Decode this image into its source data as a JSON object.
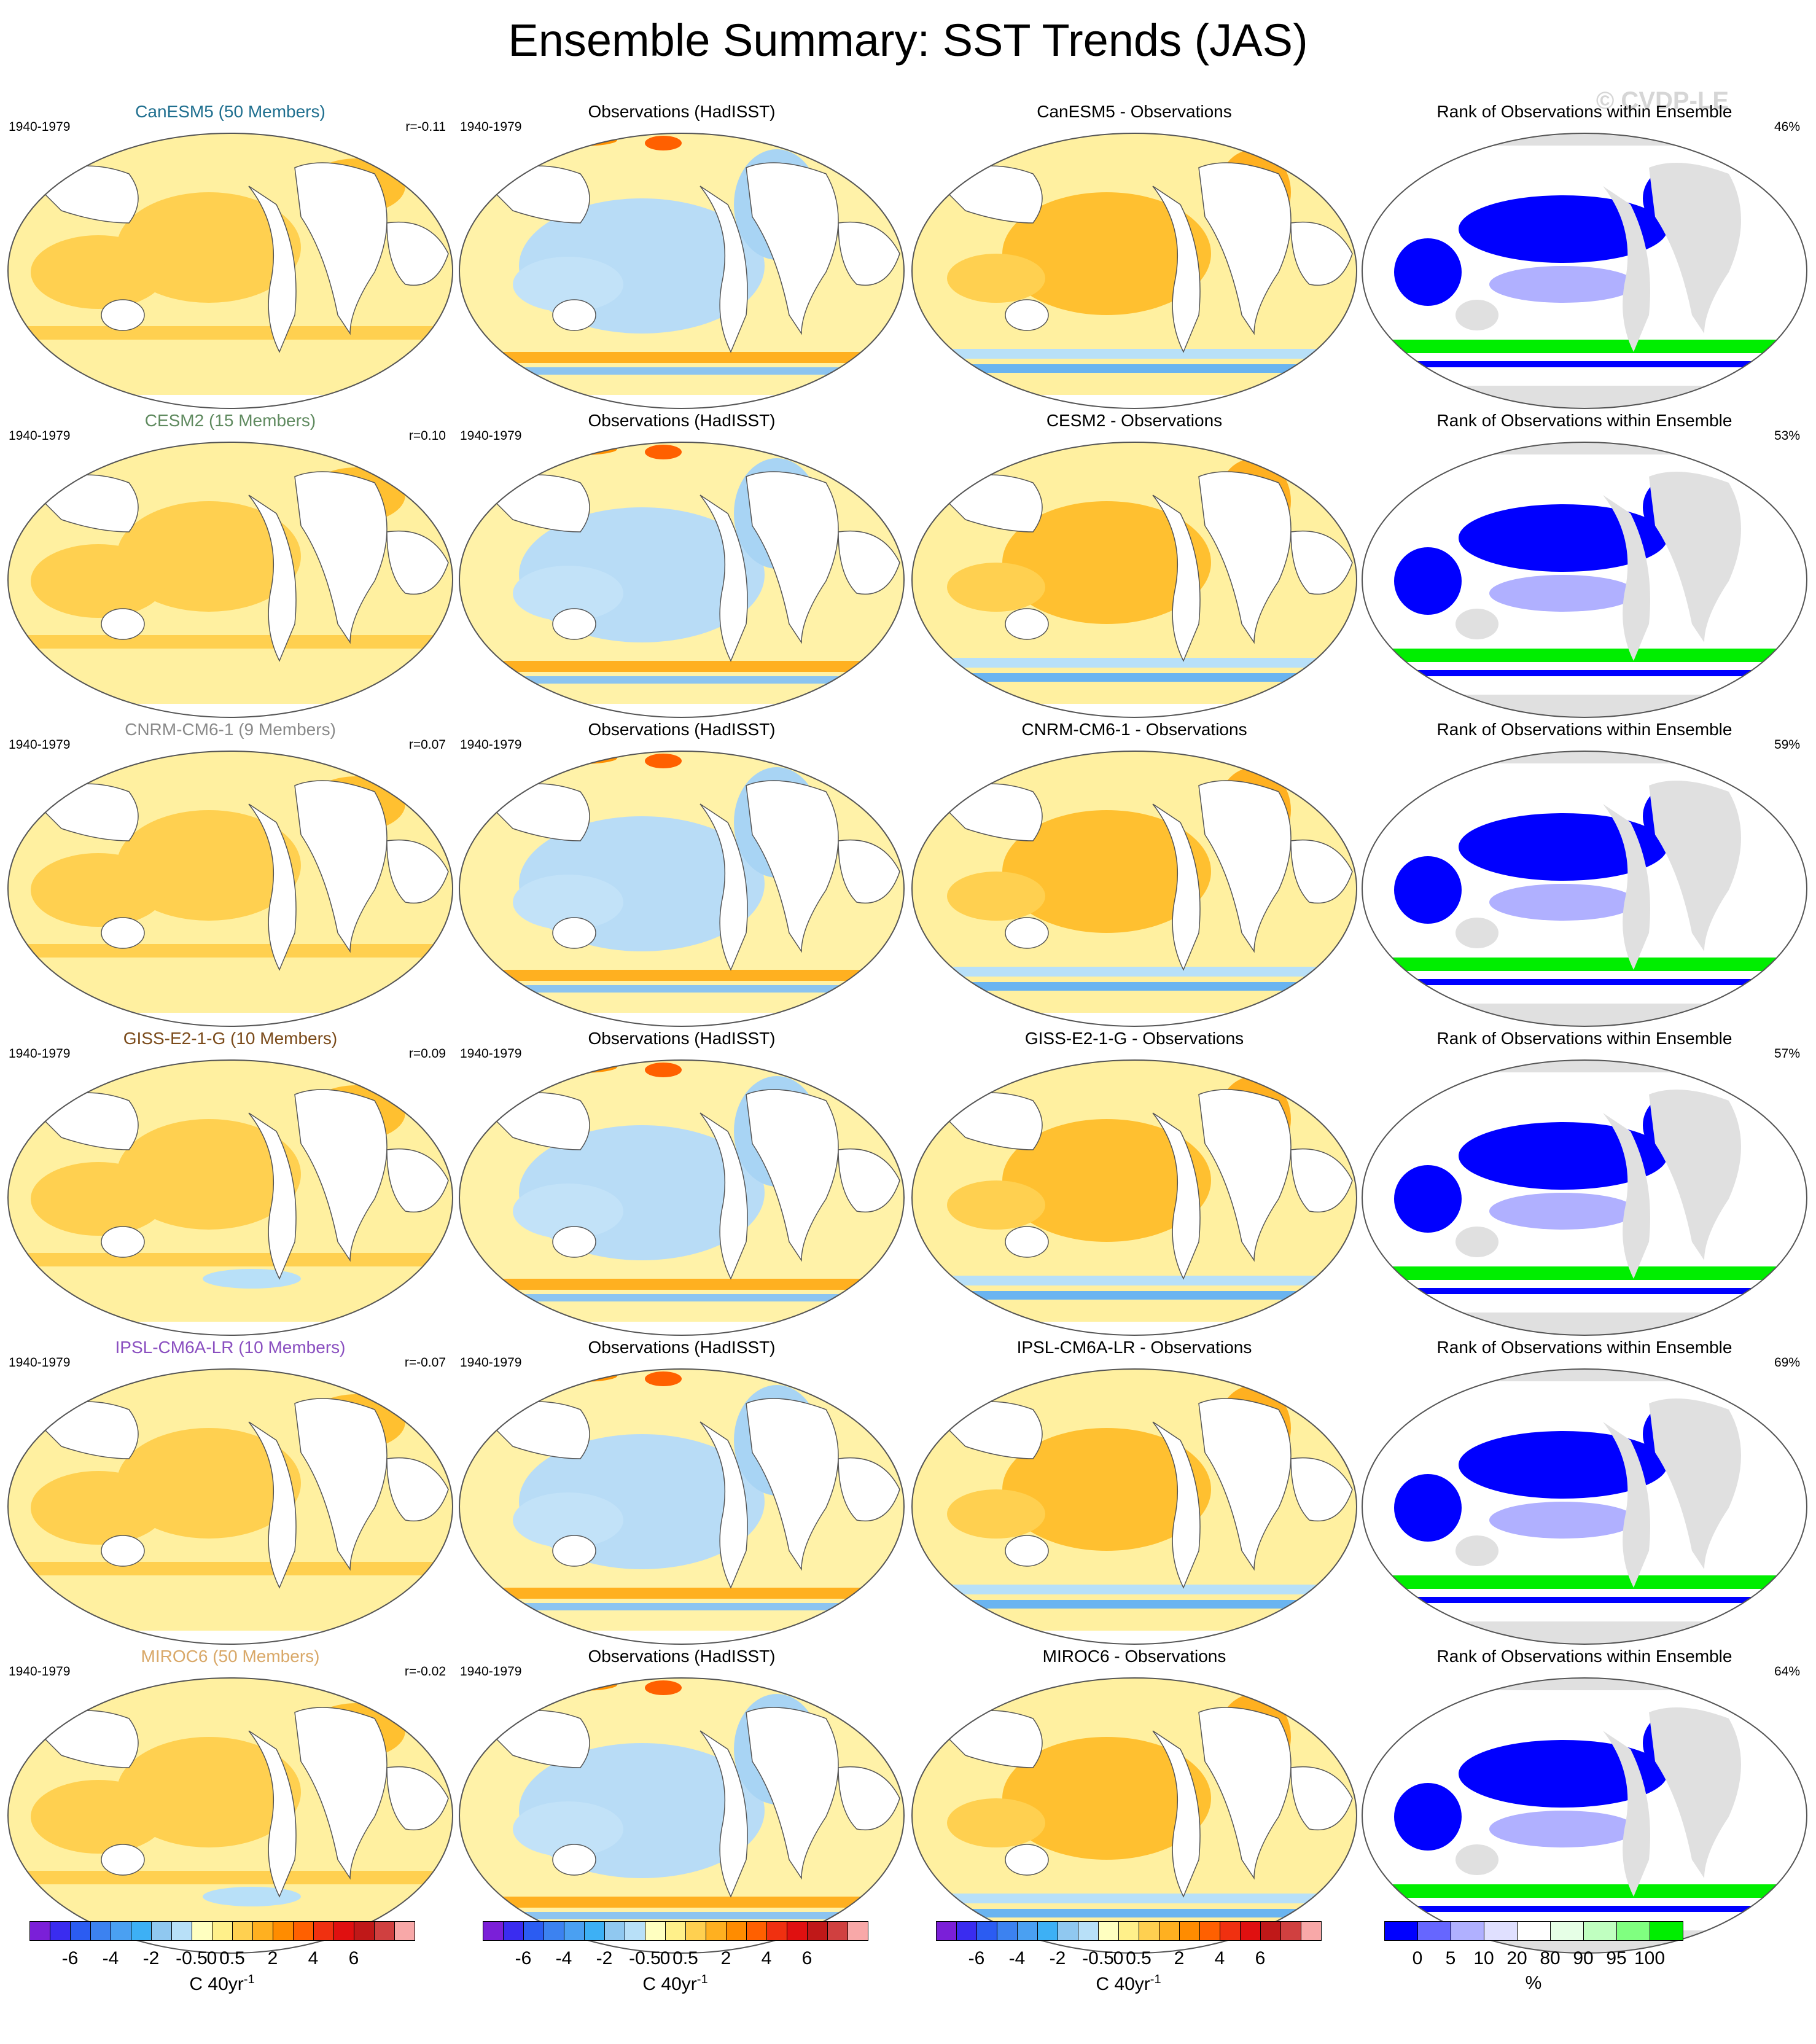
{
  "title": "Ensemble Summary: SST Trends (JAS)",
  "watermark": "© CVDP-LE",
  "period": "1940-1979",
  "obs_title": "Observations (HadISST)",
  "rank_title": "Rank of Observations within Ensemble",
  "rows": [
    {
      "model_title": "CanESM5 (50 Members)",
      "title_color": "#1f6f8f",
      "r": "r=-0.11",
      "diff_title": "CanESM5 - Observations",
      "rank_pct": "46%"
    },
    {
      "model_title": "CESM2 (15 Members)",
      "title_color": "#5f8a5f",
      "r": "r=0.10",
      "diff_title": "CESM2 - Observations",
      "rank_pct": "53%"
    },
    {
      "model_title": "CNRM-CM6-1 (9 Members)",
      "title_color": "#8a8a8a",
      "r": "r=0.07",
      "diff_title": "CNRM-CM6-1 - Observations",
      "rank_pct": "59%"
    },
    {
      "model_title": "GISS-E2-1-G (10 Members)",
      "title_color": "#7a4a1a",
      "r": "r=0.09",
      "diff_title": "GISS-E2-1-G - Observations",
      "rank_pct": "57%"
    },
    {
      "model_title": "IPSL-CM6A-LR (10 Members)",
      "title_color": "#8a4fc0",
      "r": "r=-0.07",
      "diff_title": "IPSL-CM6A-LR - Observations",
      "rank_pct": "69%"
    },
    {
      "model_title": "MIROC6 (50 Members)",
      "title_color": "#d9a868",
      "r": "r=-0.02",
      "diff_title": "MIROC6 - Observations",
      "rank_pct": "64%"
    }
  ],
  "colorbar_trend": {
    "colors": [
      "#7b1fd8",
      "#3a2cf0",
      "#2b5cf2",
      "#3c82f0",
      "#4aa0f2",
      "#3db0f5",
      "#90c8f0",
      "#b8e0f8",
      "#ffffc0",
      "#fff08a",
      "#ffd050",
      "#ffb020",
      "#ff8c00",
      "#ff6000",
      "#f03010",
      "#e01010",
      "#c01818",
      "#d04040",
      "#f8a8a8"
    ],
    "ticks": [
      "-6",
      "-4",
      "-2",
      "-0.5",
      "0",
      "0.5",
      "2",
      "4",
      "6"
    ],
    "unit_base": "C 40yr",
    "unit_sup": "-1"
  },
  "colorbar_rank": {
    "colors": [
      "#0000ff",
      "#6666ff",
      "#b0b0ff",
      "#e0e0ff",
      "#ffffff",
      "#e6ffe6",
      "#c0ffc0",
      "#80ff80",
      "#00ee00"
    ],
    "ticks": [
      "0",
      "5",
      "10",
      "20",
      "80",
      "90",
      "95",
      "100"
    ],
    "unit": "%"
  }
}
